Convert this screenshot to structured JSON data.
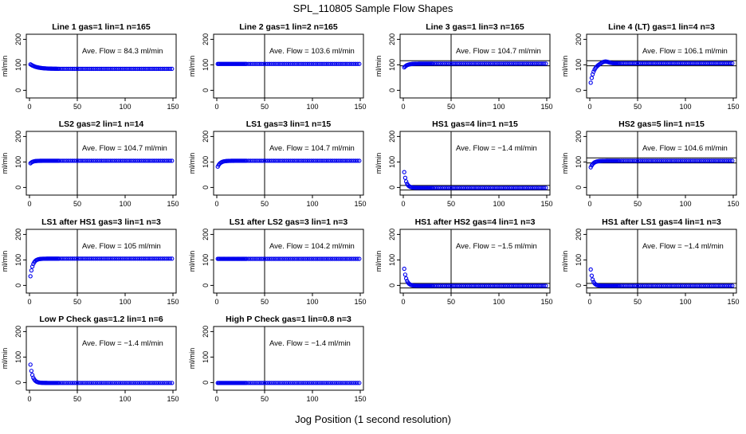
{
  "figure": {
    "title": "SPL_110805  Sample Flow Shapes",
    "xlabel": "Jog Position (1 second resolution)"
  },
  "style": {
    "point_color": "#0000ee",
    "axis_color": "#000000",
    "background": "#ffffff"
  },
  "chart_data": [
    {
      "type": "scatter",
      "title": "Line 1 gas=1 lin=1 n=165",
      "ylabel": "ml/min",
      "annotation": "Ave. Flow =  84.3  ml/min",
      "xlim": [
        0,
        150
      ],
      "ylim": [
        -30,
        220
      ],
      "xticks": [
        0,
        50,
        100,
        150
      ],
      "yticks": [
        0,
        100,
        200
      ],
      "vline": 50,
      "hlines": [],
      "shape": {
        "kind": "decay",
        "start": 105,
        "end": 84.3,
        "k": 0.15
      }
    },
    {
      "type": "scatter",
      "title": "Line 2 gas=1 lin=2 n=165",
      "ylabel": "ml/min",
      "annotation": "Ave. Flow =  103.6  ml/min",
      "xlim": [
        0,
        150
      ],
      "ylim": [
        -30,
        220
      ],
      "xticks": [
        0,
        50,
        100,
        150
      ],
      "yticks": [
        0,
        100,
        200
      ],
      "vline": 50,
      "hlines": [],
      "shape": {
        "kind": "flat",
        "value": 103.6
      }
    },
    {
      "type": "scatter",
      "title": "Line 3 gas=1 lin=3 n=165",
      "ylabel": "ml/min",
      "annotation": "Ave. Flow =  104.7  ml/min",
      "xlim": [
        0,
        150
      ],
      "ylim": [
        -30,
        220
      ],
      "xticks": [
        0,
        50,
        100,
        150
      ],
      "yticks": [
        0,
        100,
        200
      ],
      "vline": 50,
      "hlines": [
        96,
        116
      ],
      "shape": {
        "kind": "rise",
        "start": 85,
        "end": 104.7,
        "k": 0.3
      }
    },
    {
      "type": "scatter",
      "title": "Line 4 (LT) gas=1 lin=4 n=3",
      "ylabel": "ml/min",
      "annotation": "Ave. Flow =  106.1  ml/min",
      "xlim": [
        0,
        150
      ],
      "ylim": [
        -30,
        220
      ],
      "xticks": [
        0,
        50,
        100,
        150
      ],
      "yticks": [
        0,
        100,
        200
      ],
      "vline": 50,
      "hlines": [
        96,
        116
      ],
      "shape": {
        "kind": "rise",
        "start": 5,
        "end": 106.1,
        "k": 0.28,
        "overshoot": 8
      }
    },
    {
      "type": "scatter",
      "title": "LS2 gas=2 lin=1 n=14",
      "ylabel": "ml/min",
      "annotation": "Ave. Flow =  104.7  ml/min",
      "xlim": [
        0,
        150
      ],
      "ylim": [
        -30,
        220
      ],
      "xticks": [
        0,
        50,
        100,
        150
      ],
      "yticks": [
        0,
        100,
        200
      ],
      "vline": 50,
      "hlines": [],
      "shape": {
        "kind": "rise",
        "start": 90,
        "end": 104.7,
        "k": 0.4
      }
    },
    {
      "type": "scatter",
      "title": "LS1 gas=3 lin=1 n=15",
      "ylabel": "ml/min",
      "annotation": "Ave. Flow =  104.7  ml/min",
      "xlim": [
        0,
        150
      ],
      "ylim": [
        -30,
        220
      ],
      "xticks": [
        0,
        50,
        100,
        150
      ],
      "yticks": [
        0,
        100,
        200
      ],
      "vline": 50,
      "hlines": [],
      "shape": {
        "kind": "rise",
        "start": 72,
        "end": 104.7,
        "k": 0.35
      }
    },
    {
      "type": "scatter",
      "title": "HS1 gas=4 lin=1 n=15",
      "ylabel": "ml/min",
      "annotation": "Ave. Flow =  −1.4  ml/min",
      "xlim": [
        0,
        150
      ],
      "ylim": [
        -30,
        220
      ],
      "xticks": [
        0,
        50,
        100,
        150
      ],
      "yticks": [
        0,
        100,
        200
      ],
      "vline": 50,
      "hlines": [
        -10,
        8
      ],
      "shape": {
        "kind": "decay",
        "start": 95,
        "end": -1.4,
        "k": 0.45
      }
    },
    {
      "type": "scatter",
      "title": "HS2 gas=5 lin=1 n=15",
      "ylabel": "ml/min",
      "annotation": "Ave. Flow =  104.6  ml/min",
      "xlim": [
        0,
        150
      ],
      "ylim": [
        -30,
        220
      ],
      "xticks": [
        0,
        50,
        100,
        150
      ],
      "yticks": [
        0,
        100,
        200
      ],
      "vline": 50,
      "hlines": [
        96,
        116
      ],
      "shape": {
        "kind": "rise",
        "start": 68,
        "end": 104.6,
        "k": 0.35
      }
    },
    {
      "type": "scatter",
      "title": "LS1 after HS1 gas=3 lin=1 n=3",
      "ylabel": "ml/min",
      "annotation": "Ave. Flow =  105  ml/min",
      "xlim": [
        0,
        150
      ],
      "ylim": [
        -30,
        220
      ],
      "xticks": [
        0,
        50,
        100,
        150
      ],
      "yticks": [
        0,
        100,
        200
      ],
      "vline": 50,
      "hlines": [],
      "shape": {
        "kind": "rise",
        "start": 2,
        "end": 105,
        "k": 0.4
      }
    },
    {
      "type": "scatter",
      "title": "LS1 after LS2 gas=3 lin=1 n=3",
      "ylabel": "ml/min",
      "annotation": "Ave. Flow =  104.2  ml/min",
      "xlim": [
        0,
        150
      ],
      "ylim": [
        -30,
        220
      ],
      "xticks": [
        0,
        50,
        100,
        150
      ],
      "yticks": [
        0,
        100,
        200
      ],
      "vline": 50,
      "hlines": [],
      "shape": {
        "kind": "flat",
        "value": 104.2
      }
    },
    {
      "type": "scatter",
      "title": "HS1 after HS2 gas=4 lin=1 n=3",
      "ylabel": "ml/min",
      "annotation": "Ave. Flow =  −1.5  ml/min",
      "xlim": [
        0,
        150
      ],
      "ylim": [
        -30,
        220
      ],
      "xticks": [
        0,
        50,
        100,
        150
      ],
      "yticks": [
        0,
        100,
        200
      ],
      "vline": 50,
      "hlines": [
        -10,
        8
      ],
      "shape": {
        "kind": "decay",
        "start": 100,
        "end": -1.5,
        "k": 0.42
      }
    },
    {
      "type": "scatter",
      "title": "HS1 after LS1 gas=4 lin=1 n=3",
      "ylabel": "ml/min",
      "annotation": "Ave. Flow =  −1.4  ml/min",
      "xlim": [
        0,
        150
      ],
      "ylim": [
        -30,
        220
      ],
      "xticks": [
        0,
        50,
        100,
        150
      ],
      "yticks": [
        0,
        100,
        200
      ],
      "vline": 50,
      "hlines": [
        -10,
        8
      ],
      "shape": {
        "kind": "decay",
        "start": 102,
        "end": -1.4,
        "k": 0.48
      }
    },
    {
      "type": "scatter",
      "title": "Low P Check gas=1.2 lin=1 n=6",
      "ylabel": "ml/min",
      "annotation": "Ave. Flow =  −1.4  ml/min",
      "xlim": [
        0,
        150
      ],
      "ylim": [
        -30,
        220
      ],
      "xticks": [
        0,
        50,
        100,
        150
      ],
      "yticks": [
        0,
        100,
        200
      ],
      "vline": 50,
      "hlines": [],
      "shape": {
        "kind": "decay",
        "start": 108,
        "end": -1.4,
        "k": 0.42
      }
    },
    {
      "type": "scatter",
      "title": "High P Check gas=1 lin=0.8 n=3",
      "ylabel": "ml/min",
      "annotation": "Ave. Flow =  −1.4  ml/min",
      "xlim": [
        0,
        150
      ],
      "ylim": [
        -30,
        220
      ],
      "xticks": [
        0,
        50,
        100,
        150
      ],
      "yticks": [
        0,
        100,
        200
      ],
      "vline": 50,
      "hlines": [],
      "shape": {
        "kind": "flat",
        "value": -1.4
      }
    }
  ]
}
